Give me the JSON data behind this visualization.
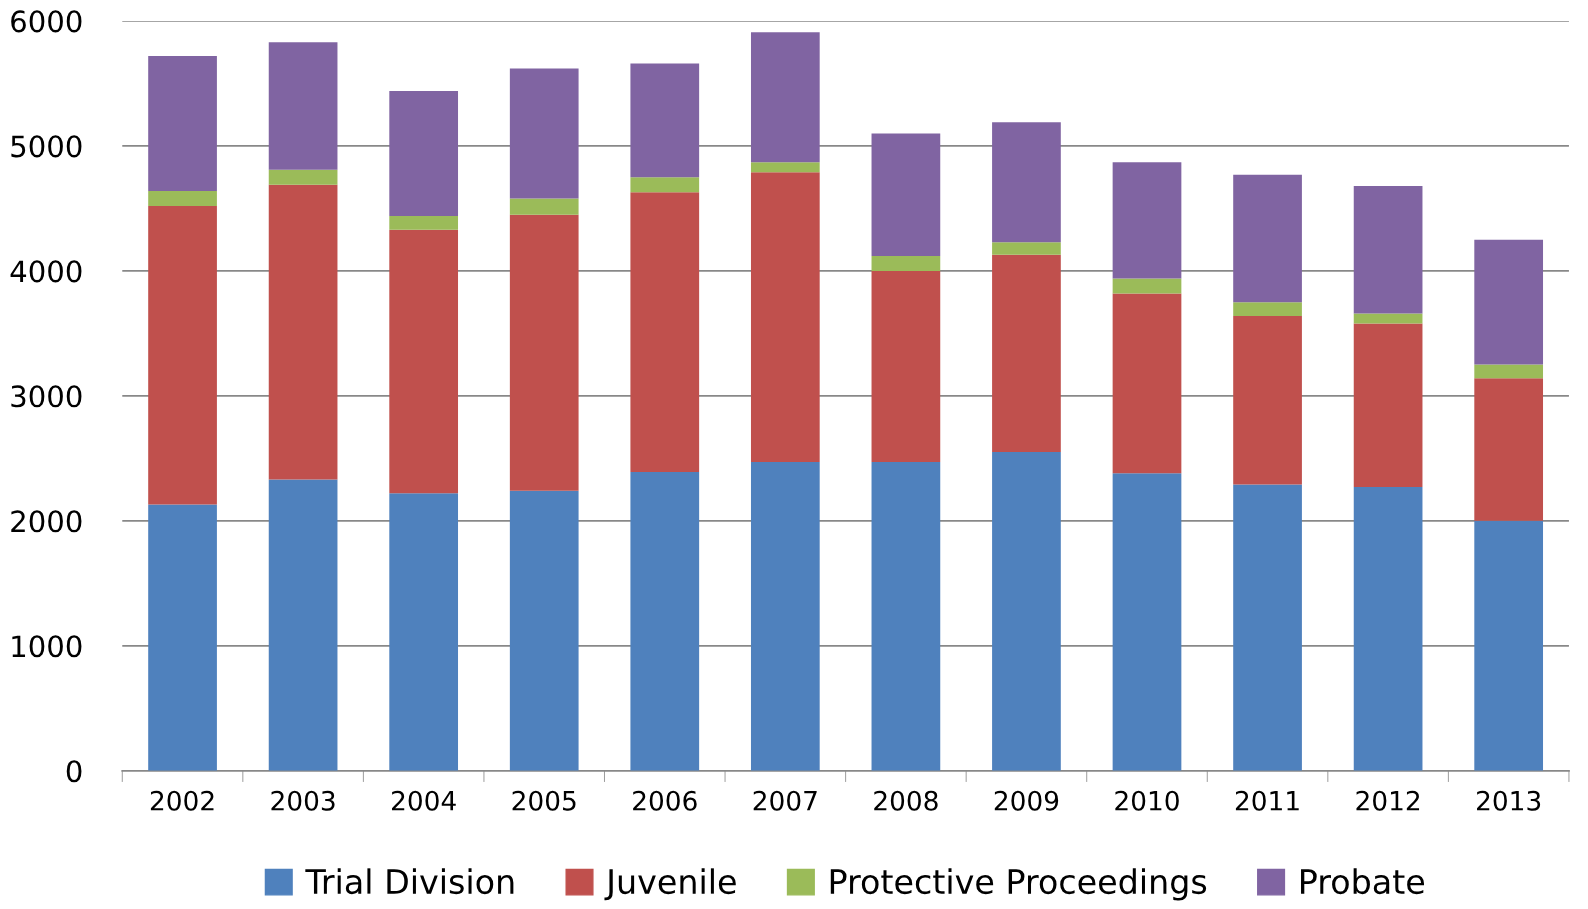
{
  "chart_data": {
    "type": "bar",
    "stacked": true,
    "categories": [
      "2002",
      "2003",
      "2004",
      "2005",
      "2006",
      "2007",
      "2008",
      "2009",
      "2010",
      "2011",
      "2012",
      "2013"
    ],
    "series": [
      {
        "name": "Trial Division",
        "color": "#4f81bd",
        "values": [
          2130,
          2330,
          2220,
          2240,
          2390,
          2470,
          2470,
          2550,
          2380,
          2290,
          2270,
          2000
        ]
      },
      {
        "name": "Juvenile",
        "color": "#c0504d",
        "values": [
          2390,
          2360,
          2110,
          2210,
          2240,
          2320,
          1530,
          1580,
          1440,
          1350,
          1310,
          1140
        ]
      },
      {
        "name": "Protective Proceedings",
        "color": "#9bbb59",
        "values": [
          120,
          120,
          110,
          130,
          120,
          80,
          120,
          100,
          120,
          110,
          80,
          110
        ]
      },
      {
        "name": "Probate",
        "color": "#8064a2",
        "values": [
          1080,
          1020,
          1000,
          1040,
          910,
          1040,
          980,
          960,
          930,
          1020,
          1020,
          1000
        ]
      }
    ],
    "ylim": [
      0,
      6000
    ],
    "yticks": [
      0,
      1000,
      2000,
      3000,
      4000,
      5000,
      6000
    ],
    "grid": "y",
    "legend": "bottom"
  }
}
